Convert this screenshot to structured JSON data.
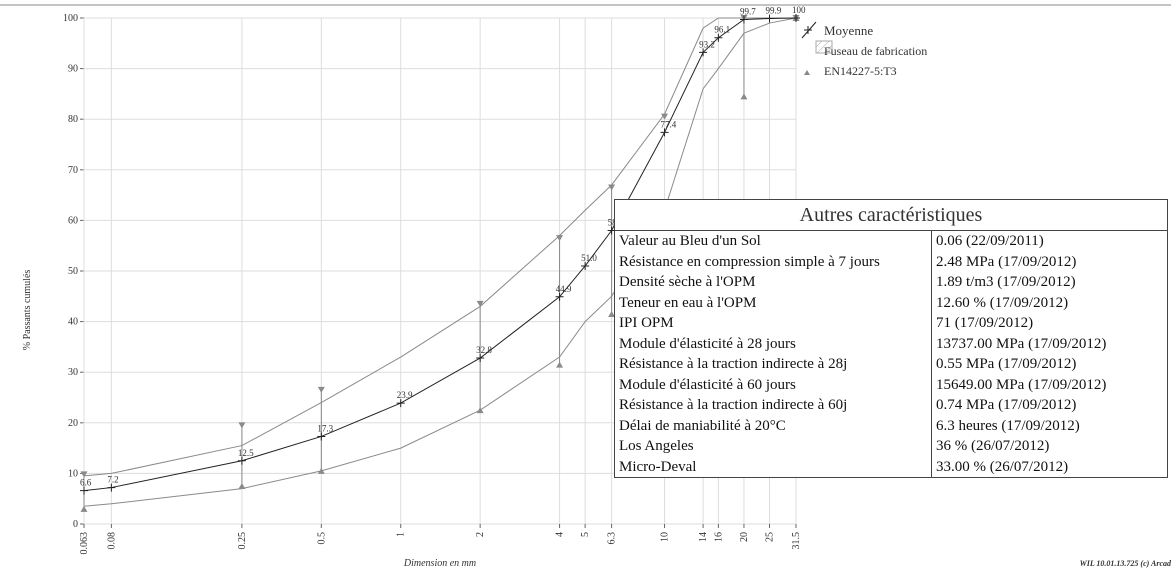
{
  "chart_data": {
    "type": "line",
    "y_label": "% Passants cumulés",
    "x_label": "Dimension en mm",
    "footer": "WIL 10.01.13.725 (c) Arcad",
    "log_x": true,
    "grid": true,
    "xlim": [
      0.063,
      31.5
    ],
    "ylim": [
      0,
      100
    ],
    "xticks": [
      0.063,
      0.08,
      0.25,
      0.5,
      1,
      2,
      4,
      5,
      6.3,
      10,
      14,
      16,
      20,
      25,
      31.5
    ],
    "yticks": [
      0,
      10,
      20,
      30,
      40,
      50,
      60,
      70,
      80,
      90,
      100
    ],
    "legend": "top-right",
    "x": [
      0.063,
      0.08,
      0.25,
      0.5,
      1,
      2,
      4,
      5,
      6.3,
      10,
      14,
      16,
      20,
      25,
      31.5
    ],
    "series": [
      {
        "name": "Moyenne",
        "color": "#222222",
        "values": [
          6.6,
          7.2,
          12.5,
          17.3,
          23.9,
          32.8,
          44.9,
          51.0,
          58,
          77.4,
          93.2,
          96.1,
          99.7,
          99.9,
          100
        ],
        "value_labels": [
          "6.6",
          "7.2",
          "12.5",
          "17.3",
          "23.9",
          "32.8",
          "44.9",
          "51.0",
          "58",
          "77.4",
          "93.2",
          "96.1",
          "99.7",
          "99.9",
          "100"
        ]
      },
      {
        "name": "Fuseau de fabrication",
        "color": "#8a8a8a",
        "upper": [
          9.5,
          10,
          15.5,
          24,
          33,
          43,
          57,
          62,
          67,
          81,
          98,
          100,
          100,
          100,
          100
        ],
        "lower": [
          3.5,
          4,
          7,
          10.5,
          15,
          22.5,
          33,
          40,
          45,
          62,
          86,
          90,
          97,
          99,
          100
        ]
      },
      {
        "name": "EN14227-5:T3",
        "color": "#8a8a8a",
        "upper": [
          9.8,
          null,
          19.5,
          26.5,
          null,
          43.5,
          56.5,
          null,
          66.5,
          80.5,
          null,
          null,
          100,
          null,
          100
        ],
        "lower": [
          3,
          null,
          7.5,
          10.5,
          null,
          22.5,
          31.5,
          null,
          41.5,
          null,
          null,
          null,
          84.5,
          null,
          100
        ]
      }
    ]
  },
  "table": {
    "title": "Autres caractéristiques",
    "rows": [
      [
        "Valeur au Bleu d'un Sol",
        "0.06  (22/09/2011)"
      ],
      [
        "Résistance en compression simple à 7 jours",
        "2.48 MPa  (17/09/2012)"
      ],
      [
        "Densité sèche à l'OPM",
        "1.89 t/m3  (17/09/2012)"
      ],
      [
        "Teneur en eau à l'OPM",
        "12.60 %  (17/09/2012)"
      ],
      [
        "IPI OPM",
        "71   (17/09/2012)"
      ],
      [
        "Module d'élasticité à 28 jours",
        "13737.00 MPa  (17/09/2012)"
      ],
      [
        "Résistance à la traction indirecte à 28j",
        "0.55 MPa  (17/09/2012)"
      ],
      [
        "Module d'élasticité à 60 jours",
        "15649.00 MPa  (17/09/2012)"
      ],
      [
        "Résistance à la traction indirecte à 60j",
        "0.74 MPa  (17/09/2012)"
      ],
      [
        "Délai de maniabilité à 20°C",
        "6.3 heures  (17/09/2012)"
      ],
      [
        "Los Angeles",
        "36 %  (26/07/2012)"
      ],
      [
        "Micro-Deval",
        "33.00 %  (26/07/2012)"
      ]
    ]
  }
}
